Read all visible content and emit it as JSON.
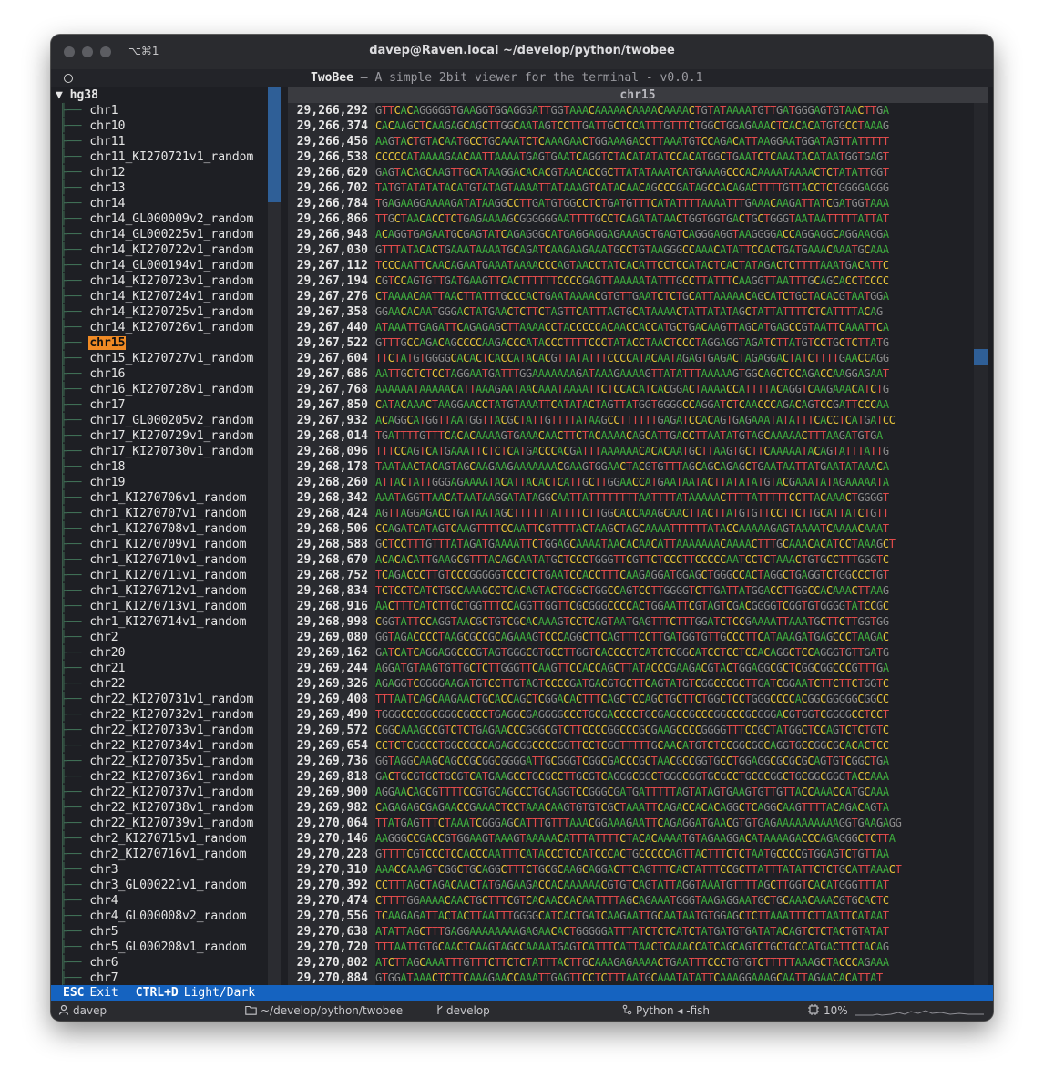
{
  "window": {
    "shortcut": "⌥⌘1",
    "title": "davep@Raven.local ~/develop/python/twobee"
  },
  "app": {
    "name": "TwoBee",
    "separator": " — ",
    "description": "A simple 2bit viewer for the terminal - v0.0.1"
  },
  "tree": {
    "root": "hg38",
    "items": [
      "chr1",
      "chr10",
      "chr11",
      "chr11_KI270721v1_random",
      "chr12",
      "chr13",
      "chr14",
      "chr14_GL000009v2_random",
      "chr14_GL000225v1_random",
      "chr14_KI270722v1_random",
      "chr14_GL000194v1_random",
      "chr14_KI270723v1_random",
      "chr14_KI270724v1_random",
      "chr14_KI270725v1_random",
      "chr14_KI270726v1_random",
      "chr15",
      "chr15_KI270727v1_random",
      "chr16",
      "chr16_KI270728v1_random",
      "chr17",
      "chr17_GL000205v2_random",
      "chr17_KI270729v1_random",
      "chr17_KI270730v1_random",
      "chr18",
      "chr19",
      "chr1_KI270706v1_random",
      "chr1_KI270707v1_random",
      "chr1_KI270708v1_random",
      "chr1_KI270709v1_random",
      "chr1_KI270710v1_random",
      "chr1_KI270711v1_random",
      "chr1_KI270712v1_random",
      "chr1_KI270713v1_random",
      "chr1_KI270714v1_random",
      "chr2",
      "chr20",
      "chr21",
      "chr22",
      "chr22_KI270731v1_random",
      "chr22_KI270732v1_random",
      "chr22_KI270733v1_random",
      "chr22_KI270734v1_random",
      "chr22_KI270735v1_random",
      "chr22_KI270736v1_random",
      "chr22_KI270737v1_random",
      "chr22_KI270738v1_random",
      "chr22_KI270739v1_random",
      "chr2_KI270715v1_random",
      "chr2_KI270716v1_random",
      "chr3",
      "chr3_GL000221v1_random",
      "chr4",
      "chr4_GL000008v2_random",
      "chr5",
      "chr5_GL000208v1_random",
      "chr6",
      "chr7"
    ],
    "selected": "chr15"
  },
  "sequence": {
    "title": "chr15",
    "rows": [
      {
        "pos": "29,266,292",
        "seq": "GTTCACAGGGGGTGAAGGTGGAGGGATTGGTAAACAAAAACAAAACAAAACTGTATAAAATGTTGATGGGAGTGTAACTTGA"
      },
      {
        "pos": "29,266,374",
        "seq": "CACAAGCTCAAGAGCAGCTTGGCAATAGTCCTTGATTGCTCCATTTGTTTCTGGCTGGAGAAACTCACACATGTGCCTAAAG"
      },
      {
        "pos": "29,266,456",
        "seq": "AAGTACTGTACAATGCCTGCAAATCTCAAAGAACTGGAAAGACCTTAAATGTCCAGACATTAAGGAATGGATAGTTATTTTT"
      },
      {
        "pos": "29,266,538",
        "seq": "CCCCCATAAAAGAACAATTAAAATGAGTGAATCAGGTCTACATATATCCACATGGCTGAATCTCAAATACATAATGGTGAGT"
      },
      {
        "pos": "29,266,620",
        "seq": "GAGTACAGCAAGTTGCATAAGGACACACGTAACACCGCTTATATAAATCATGAAAGCCCACAAAATAAAACTCTATATTGGT"
      },
      {
        "pos": "29,266,702",
        "seq": "TATGTATATATACATGTATAGTAAAATTATAAAGTCATACAACAGCCCGATAGCCACAGACTTTTGTTACCTCTGGGGAGGG"
      },
      {
        "pos": "29,266,784",
        "seq": "TGAGAAGGAAAAGATATAAGGCCTTGATGTGGCCTCTGATGTTTCATATTTTAAAATTTGAAACAAGATTATCGATGGTAAA"
      },
      {
        "pos": "29,266,866",
        "seq": "TTGCTAACACCTCTGAGAAAAGCGGGGGGAATTTTGCCTCAGATATAACTGGTGGTGACTGCTGGGTAATAATTTTTATTAT"
      },
      {
        "pos": "29,266,948",
        "seq": "ACAGGTGAGAATGCGAGTATCAGAGGGCATGAGGAGGAGAAAGCTGAGTCAGGGAGGTAAGGGGACCAGGAGGCAGGAAGGA"
      },
      {
        "pos": "29,267,030",
        "seq": "GTTTATACACTGAAATAAAATGCAGATCAAGAAGAAATGCCTGTAAGGGCCAAACATATTCCACTGATGAAACAAATGCAAA"
      },
      {
        "pos": "29,267,112",
        "seq": "TCCCAATTCAACAGAATGAAATAAAACCCAGTAACCTATCACATTCCTCCATACTCACTATAGACTCTTTTAAATGACATTC"
      },
      {
        "pos": "29,267,194",
        "seq": "CGTCCAGTGTTGATGAAGTTCACTTTTTTCCCCGAGTTAAAAATATTTGCCTTATTTCAAGGTTAATTTGCAGCACCTCCCC"
      },
      {
        "pos": "29,267,276",
        "seq": "CTAAAACAATTAACTTATTTGCCCACTGAATAAAACGTGTTGAATCTCTGCATTAAAAACAGCATCTGCTACACGTAATGGA"
      },
      {
        "pos": "29,267,358",
        "seq": "GGAACACAATGGGACTATGAACTCTTCTAGTTCATTTAGTGCATAAAACTATTATATAGCTATTATTTTCTCATTTTACAG"
      },
      {
        "pos": "29,267,440",
        "seq": "ATAAATTGAGATTCAGAGAGCTTAAAACCTACCCCCACAACCACCATGCTGACAAGTTAGCATGAGCCGTAATTCAAATTCA"
      },
      {
        "pos": "29,267,522",
        "seq": "GTTTGCCAGACAGCCCCAAGACCCATACCCTTTTCCCTATACCTAACTCCCTAGGAGGTAGATCTTATGTCCTGCTCTTATG"
      },
      {
        "pos": "29,267,604",
        "seq": "TTCTATGTGGGGCACACTCACCATACACGTTATATTTCCCCATACAATAGAGTGAGACTAGAGGACTATCTTTTGAACCAGG"
      },
      {
        "pos": "29,267,686",
        "seq": "AATTGCTCTCCTAGGAATGATTTGGAAAAAAAGATAAAGAAAAGTTATATTTAAAAAGTGGCAGCTCCAGACCAAGGAGAAT"
      },
      {
        "pos": "29,267,768",
        "seq": "AAAAAATAAAAACATTAAAGAATAACAAATAAAATTCTCCACATCACGGACTAAAACCATTTTACAGGTCAAGAAACATCTG"
      },
      {
        "pos": "29,267,850",
        "seq": "CATACAAACTAAGGAACCTATGTAAATTCATATACTAGTTATGGTGGGGCCAGGATCTCAACCCAGACAGTCCGATTCCCAA"
      },
      {
        "pos": "29,267,932",
        "seq": "ACAGGCATGGTTAATGGTTACGCTATTGTTTTATAAGCCTTTTTTGAGATCCACAGTGAGAAATATATTTCACCTCATGATCC"
      },
      {
        "pos": "29,268,014",
        "seq": "TGATTTTGTTTCACACAAAAGTGAAACAACTTCTACAAAACAGCATTGACCTTAATATGTAGCAAAAACTTTAAGATGTGA"
      },
      {
        "pos": "29,268,096",
        "seq": "TTTCCAGTCATGAAATTCTCTCATGACCCACGATTTAAAAAACACACAATGCTTAAGTGCTTCAAAAATACAGTATTTATTG"
      },
      {
        "pos": "29,268,178",
        "seq": "TAATAACTACAGTAGCAAGAAGAAAAAAACGAAGTGGAACTACGTGTTTAGCAGCAGAGCTGAATAATTATGAATATAAACA"
      },
      {
        "pos": "29,268,260",
        "seq": "ATTACTATTGGGAGAAAATACATTACACTCATTGCTTGGAACCATGAATAATACTTATATATGTACGAAATATAGAAAAATA"
      },
      {
        "pos": "29,268,342",
        "seq": "AAATAGGTTAACATAATAAGGATATAGGCAATTATTTTTTTTAATTTTATAAAAACTTTTATTTTTCCTTACAAACTGGGGT"
      },
      {
        "pos": "29,268,424",
        "seq": "AGTTAGGAGACCTGATAATAGCTTTTTTATTTTCTTGGCACCAAAGCAACTTACTTATGTGTTCCTTCTTGCATTATCTGTT"
      },
      {
        "pos": "29,268,506",
        "seq": "CCAGATCATAGTCAAGTTTTCCAATTCGTTTTACTAAGCTAGCAAAATTTTTTATACCAAAAAGAGTAAAATCAAAACAAAT"
      },
      {
        "pos": "29,268,588",
        "seq": "GCTCCTTTGTTTATAGATGAAAATTCTGGAGCAAAATAACACAACATTAAAAAAACAAAACTTTGCAAACACATCCTAAAGCT"
      },
      {
        "pos": "29,268,670",
        "seq": "ACACACATTGAAGCGTTTACAGCAATATGCTCCCTGGGTTCGTTCTCCCTTCCCCCAATCCTCTAAACTGTGCCTTTGGGTC"
      },
      {
        "pos": "29,268,752",
        "seq": "TCAGACCCTTGTCCCGGGGGTCCCTCTGAATCCACCTTTCAAGAGGATGGAGCTGGGCCACTAGGCTGAGGTCTGGCCCTGT"
      },
      {
        "pos": "29,268,834",
        "seq": "TCTCCTCATCTGCCAAAGCCTCACAGTACTGCGCTGGCCAGTCCTTGGGGTCTTGATTATGGACCTTGGCCACAAACTTAAG"
      },
      {
        "pos": "29,268,916",
        "seq": "AACTTTCATCTTGCTGGTTTCCAGGTTGGTTCGCGGGCCCCACTGGAATTCGTAGTCGACGGGGTCGGTGTGGGGTATCCGC"
      },
      {
        "pos": "29,268,998",
        "seq": "CGGTATTCCAGGTAACGCTGTCGCACAAAGTCCTCAGTAATGAGTTTCTTTGGATCTCCGAAAATTAAATGCTTCTTGGTGG"
      },
      {
        "pos": "29,269,080",
        "seq": "GGTAGACCCCTAAGCGCCGCAGAAAGTCCCAGGCTTCAGTTTCCTTGATGGTGTTGCCCTTCATAAAGATGAGCCCTAAGAC"
      },
      {
        "pos": "29,269,162",
        "seq": "GATCATCAGGAGGCCCGTAGTGGGCGTGCCTTGGTCACCCCTCATCTCGGCATCCTCCTCCACAGGCTCCAGGGTGTTGATG"
      },
      {
        "pos": "29,269,244",
        "seq": "AGGATGTAAGTGTTGCTCTTGGGTTCAAGTTCCACCAGCTTATACCCGAAGACGTACTGGAGGCGCTCGGCGGCCCGTTTGA"
      },
      {
        "pos": "29,269,326",
        "seq": "AGAGGTCGGGGAAGATGTCCTTGTAGTCCCCGATGACGTGCTTCAGTATGTCGGCCCGCTTGATCGGAATCTTCTTCTGGTC"
      },
      {
        "pos": "29,269,408",
        "seq": "TTTAATCAGCAAGAACTGCACCAGCTCGGACACTTTCAGCTCCAGCTGCTTCTGGCTCCTGGGCCCCACGGCGGGGGCGGCC"
      },
      {
        "pos": "29,269,490",
        "seq": "TGGGCCCGGCGGGCGCCCTGAGGCGAGGGGCCCTGCGACCCCTGCGAGCCGCCCGGCCCGCGGGACGTGGTCGGGGCCTCCT"
      },
      {
        "pos": "29,269,572",
        "seq": "CGGCAAAGCCGTCTCTGAGAACCCGGGCGTCTTCCCCGGCCCGCGAAGCCCCGGGGTTTCCGCTATGGCTCCAGTCTCTGTC"
      },
      {
        "pos": "29,269,654",
        "seq": "CCTCTCGGCCTGGCCGCCAGAGCGGCCCCGGTTCCTCGGTTTTTGCAACATGTCTCCGGCGGCAGGTGCCGGCGCACACTCC"
      },
      {
        "pos": "29,269,736",
        "seq": "GGTAGGCAAGCAGCCGCGGCGGGGATTGCGGGTCGGCGACCCGCTAACGCCGGTGCCTGGAGGCGCGCGCAGTGTCGGCTGA"
      },
      {
        "pos": "29,269,818",
        "seq": "GACTGCGTGCTGCGTCATGAAGCCTGCGCCTTGCGTCAGGGCGGCTGGGCGGTGCGCCTGCGCGGCTGCGGCGGGTACCAAA"
      },
      {
        "pos": "29,269,900",
        "seq": "AGGAACAGCGTTTTCCGTGCAGCCCTGCAGGTCCGGGCGATGATTTTTAGTATAGTGAAGTGTTGTTACCAAACCATGCAAA"
      },
      {
        "pos": "29,269,982",
        "seq": "CAGAGAGCGAGAACCGAAACTCCTAAACAAGTGTGTCGCTAAATTCAGACCACACAGGCTCAGGCAAGTTTTACAGACAGTA"
      },
      {
        "pos": "29,270,064",
        "seq": "TTATGAGTTTCTAAATCGGGAGCATTTGTTTAAACGGAAAGAATTCAGAGGATGAACGTGTGAGAAAAAAAAAAGGTGAAGAGG"
      },
      {
        "pos": "29,270,146",
        "seq": "AAGGGCCGACCGTGGAAGTAAAGTAAAAACATTTATTTTCTACACAAAATGTAGAAGGACATAAAAGACCCAGAGGGCTCTTA"
      },
      {
        "pos": "29,270,228",
        "seq": "GTTTTCGTCCCTCCACCCAATTTCATACCCTCCATCCCACTGCCCCCAGTTACTTTCTCTAATGCCCCGTGGAGTCTGTTAA"
      },
      {
        "pos": "29,270,310",
        "seq": "AAACCAAAGTCGGCTGCAGGCTTTCTGCGCAAGCAGGACTTCAGTTTCACTATTTCCGCTTATTTATATTCTCTGCATTAAACT"
      },
      {
        "pos": "29,270,392",
        "seq": "CCTTTAGCTAGACAACTATGAGAAGACCACAAAAAACGTGTCAGTATTAGGTAAATGTTTTAGCTTGGTCACATGGGTTTAT"
      },
      {
        "pos": "29,270,474",
        "seq": "CTTTTGGAAAACAACTGCTTTCGTCACAACCACAATTTTAGCAGAAATGGGTAAGAGGAATGCTGCAAACAAACGTGCACTC"
      },
      {
        "pos": "29,270,556",
        "seq": "TCAAGAGATTACTACTTAATTTGGGGCATCACTGATCAAGAATTGCAATAATGTGGAGCTCTTAAATTTCTTAATTCATAAT"
      },
      {
        "pos": "29,270,638",
        "seq": "ATATTAGCTTTGAGGAAAAAAAAGAGAACACTGGGGGATTTATCTCTCATCTATGATGTGATATACAGTCTCTACTGTATAT"
      },
      {
        "pos": "29,270,720",
        "seq": "TTTAATTGTGCAACTCAAGTAGCCAAAATGAGTCATTTCATTAACTCAAACCATCAGCAGTCTGCTGCCATGACTTCTACAG"
      },
      {
        "pos": "29,270,802",
        "seq": "ATCTTAGCAAATTTGTTTCTTCTCTATTTACTTGCAAAGAGAAAACTGAATTTCCCTGTGTCTTTTTAAAGCTACCCAGAAA"
      },
      {
        "pos": "29,270,884",
        "seq": "GTGGATAAACTCTTCAAAGAACCAAATTGAGTTCCTCTTTAATGCAAATATATTCAAAGGAAAGCAATTAGAACACATTAT"
      }
    ]
  },
  "footer": {
    "keys": [
      {
        "key": "ESC",
        "label": "Exit"
      },
      {
        "key": "CTRL+D",
        "label": "Light/Dark"
      }
    ]
  },
  "statusbar": {
    "user": "davep",
    "path": "~/develop/python/twobee",
    "branch": "develop",
    "process": "Python ◂ -fish",
    "cpu": "10%"
  },
  "colors": {
    "A": "#3fae3f",
    "C": "#e8c43a",
    "G": "#8c8c8c",
    "T": "#e04b4b",
    "selection": "#f08a24",
    "accent": "#1563c0"
  }
}
